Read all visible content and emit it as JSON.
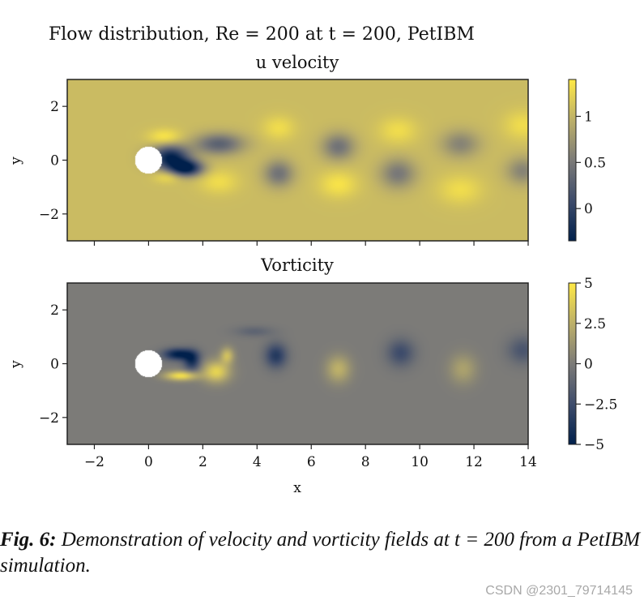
{
  "figure_title": "Flow distribution, Re = 200 at t = 200, PetIBM",
  "caption": {
    "lead": "Fig. 6:",
    "text": "Demonstration of velocity and vorticity fields at t = 200 from a PetIBM simulation."
  },
  "watermark": "CSDN @2301_79714145",
  "colors": {
    "cividis_low": "#00204c",
    "cividis_mid": "#7c7b78",
    "cividis_high": "#ffe945",
    "cylinder": "#ffffff"
  },
  "chart_data": [
    {
      "type": "heatmap",
      "title": "u velocity",
      "xlabel": "",
      "ylabel": "y",
      "xlim": [
        -3,
        14
      ],
      "ylim": [
        -3,
        3
      ],
      "yticks": [
        -2,
        0,
        2
      ],
      "xticks": [
        -2,
        0,
        2,
        4,
        6,
        8,
        10,
        12,
        14
      ],
      "colormap": "cividis",
      "color_range": [
        -0.35,
        1.4
      ],
      "colorbar_ticks": [
        0.0,
        0.5,
        1.0
      ],
      "background_value": 1.05,
      "cylinder": {
        "x": 0,
        "y": 0,
        "r": 0.5
      },
      "features": [
        {
          "x": 0.8,
          "y": 0.1,
          "sx": 0.7,
          "sy": 0.45,
          "value": -0.3
        },
        {
          "x": 1.4,
          "y": -0.3,
          "sx": 0.6,
          "sy": 0.3,
          "value": -0.3
        },
        {
          "x": 2.6,
          "y": 0.6,
          "sx": 0.9,
          "sy": 0.4,
          "value": 0.3
        },
        {
          "x": 0.6,
          "y": 0.85,
          "sx": 0.6,
          "sy": 0.3,
          "value": 1.4
        },
        {
          "x": 0.7,
          "y": -0.6,
          "sx": 0.5,
          "sy": 0.25,
          "value": 1.35
        },
        {
          "x": 2.6,
          "y": -0.8,
          "sx": 0.7,
          "sy": 0.45,
          "value": 1.3
        },
        {
          "x": 4.8,
          "y": 1.2,
          "sx": 0.6,
          "sy": 0.45,
          "value": 1.3
        },
        {
          "x": 4.8,
          "y": -0.5,
          "sx": 0.55,
          "sy": 0.5,
          "value": 0.45
        },
        {
          "x": 7.0,
          "y": 0.5,
          "sx": 0.6,
          "sy": 0.5,
          "value": 0.45
        },
        {
          "x": 7.0,
          "y": -0.9,
          "sx": 0.7,
          "sy": 0.5,
          "value": 1.35
        },
        {
          "x": 9.2,
          "y": 1.1,
          "sx": 0.7,
          "sy": 0.5,
          "value": 1.3
        },
        {
          "x": 9.2,
          "y": -0.5,
          "sx": 0.65,
          "sy": 0.55,
          "value": 0.5
        },
        {
          "x": 11.5,
          "y": 0.6,
          "sx": 0.7,
          "sy": 0.5,
          "value": 0.6
        },
        {
          "x": 11.5,
          "y": -1.1,
          "sx": 0.8,
          "sy": 0.55,
          "value": 1.3
        },
        {
          "x": 13.8,
          "y": 1.3,
          "sx": 0.7,
          "sy": 0.55,
          "value": 1.3
        },
        {
          "x": 13.8,
          "y": -0.4,
          "sx": 0.6,
          "sy": 0.5,
          "value": 0.6
        }
      ]
    },
    {
      "type": "heatmap",
      "title": "Vorticity",
      "xlabel": "x",
      "ylabel": "y",
      "xlim": [
        -3,
        14
      ],
      "ylim": [
        -3,
        3
      ],
      "yticks": [
        -2,
        0,
        2
      ],
      "xticks": [
        -2,
        0,
        2,
        4,
        6,
        8,
        10,
        12,
        14
      ],
      "colormap": "cividis",
      "color_range": [
        -5.0,
        5.0
      ],
      "colorbar_ticks": [
        5.0,
        2.5,
        0.0,
        -2.5,
        -5.0
      ],
      "background_value": 0.0,
      "cylinder": {
        "x": 0,
        "y": 0,
        "r": 0.5
      },
      "features": [
        {
          "x": 1.1,
          "y": 0.35,
          "sx": 0.55,
          "sy": 0.22,
          "value": -5.0
        },
        {
          "x": 1.6,
          "y": 0.1,
          "sx": 0.3,
          "sy": 0.35,
          "value": -4.0
        },
        {
          "x": 1.2,
          "y": -0.45,
          "sx": 0.6,
          "sy": 0.18,
          "value": 4.5
        },
        {
          "x": 2.5,
          "y": -0.3,
          "sx": 0.5,
          "sy": 0.4,
          "value": 4.0
        },
        {
          "x": 2.9,
          "y": 0.3,
          "sx": 0.25,
          "sy": 0.3,
          "value": 3.0
        },
        {
          "x": 4.7,
          "y": 0.3,
          "sx": 0.4,
          "sy": 0.45,
          "value": -3.5
        },
        {
          "x": 3.9,
          "y": 1.2,
          "sx": 0.7,
          "sy": 0.2,
          "value": -1.2
        },
        {
          "x": 7.0,
          "y": -0.2,
          "sx": 0.45,
          "sy": 0.5,
          "value": 2.5
        },
        {
          "x": 9.3,
          "y": 0.4,
          "sx": 0.5,
          "sy": 0.5,
          "value": -2.5
        },
        {
          "x": 11.6,
          "y": -0.2,
          "sx": 0.5,
          "sy": 0.55,
          "value": 1.8
        },
        {
          "x": 13.8,
          "y": 0.5,
          "sx": 0.55,
          "sy": 0.5,
          "value": -2.0
        }
      ]
    }
  ]
}
